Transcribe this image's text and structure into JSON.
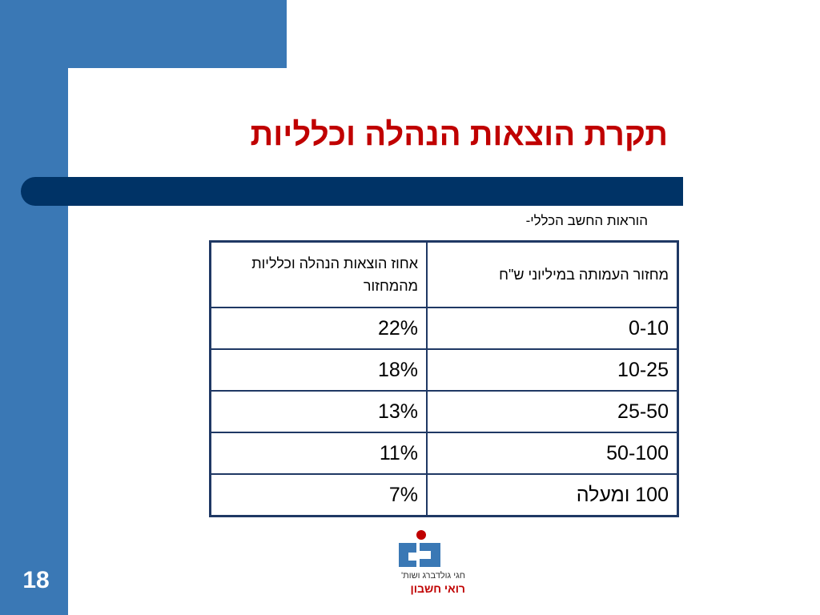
{
  "slide": {
    "title": "תקרת הוצאות הנהלה וכלליות",
    "subtitle": "הוראות החשב הכללי-",
    "number": "18"
  },
  "table": {
    "headers": [
      "מחזור העמותה במיליוני ש\"ח",
      "אחוז הוצאות הנהלה וכלליות מהמחזור"
    ],
    "rows": [
      [
        "0-10",
        "22%"
      ],
      [
        "10-25",
        "18%"
      ],
      [
        "25-50",
        "13%"
      ],
      [
        "50-100",
        "11%"
      ],
      [
        "100 ומעלה",
        "7%"
      ]
    ]
  },
  "logo": {
    "line1": "חגי גולדברג ושות'",
    "line2": "רואי חשבון"
  },
  "colors": {
    "accent_blue": "#3a78b5",
    "dark_navy": "#003366",
    "title_red": "#c00000",
    "table_border": "#1f3864"
  }
}
